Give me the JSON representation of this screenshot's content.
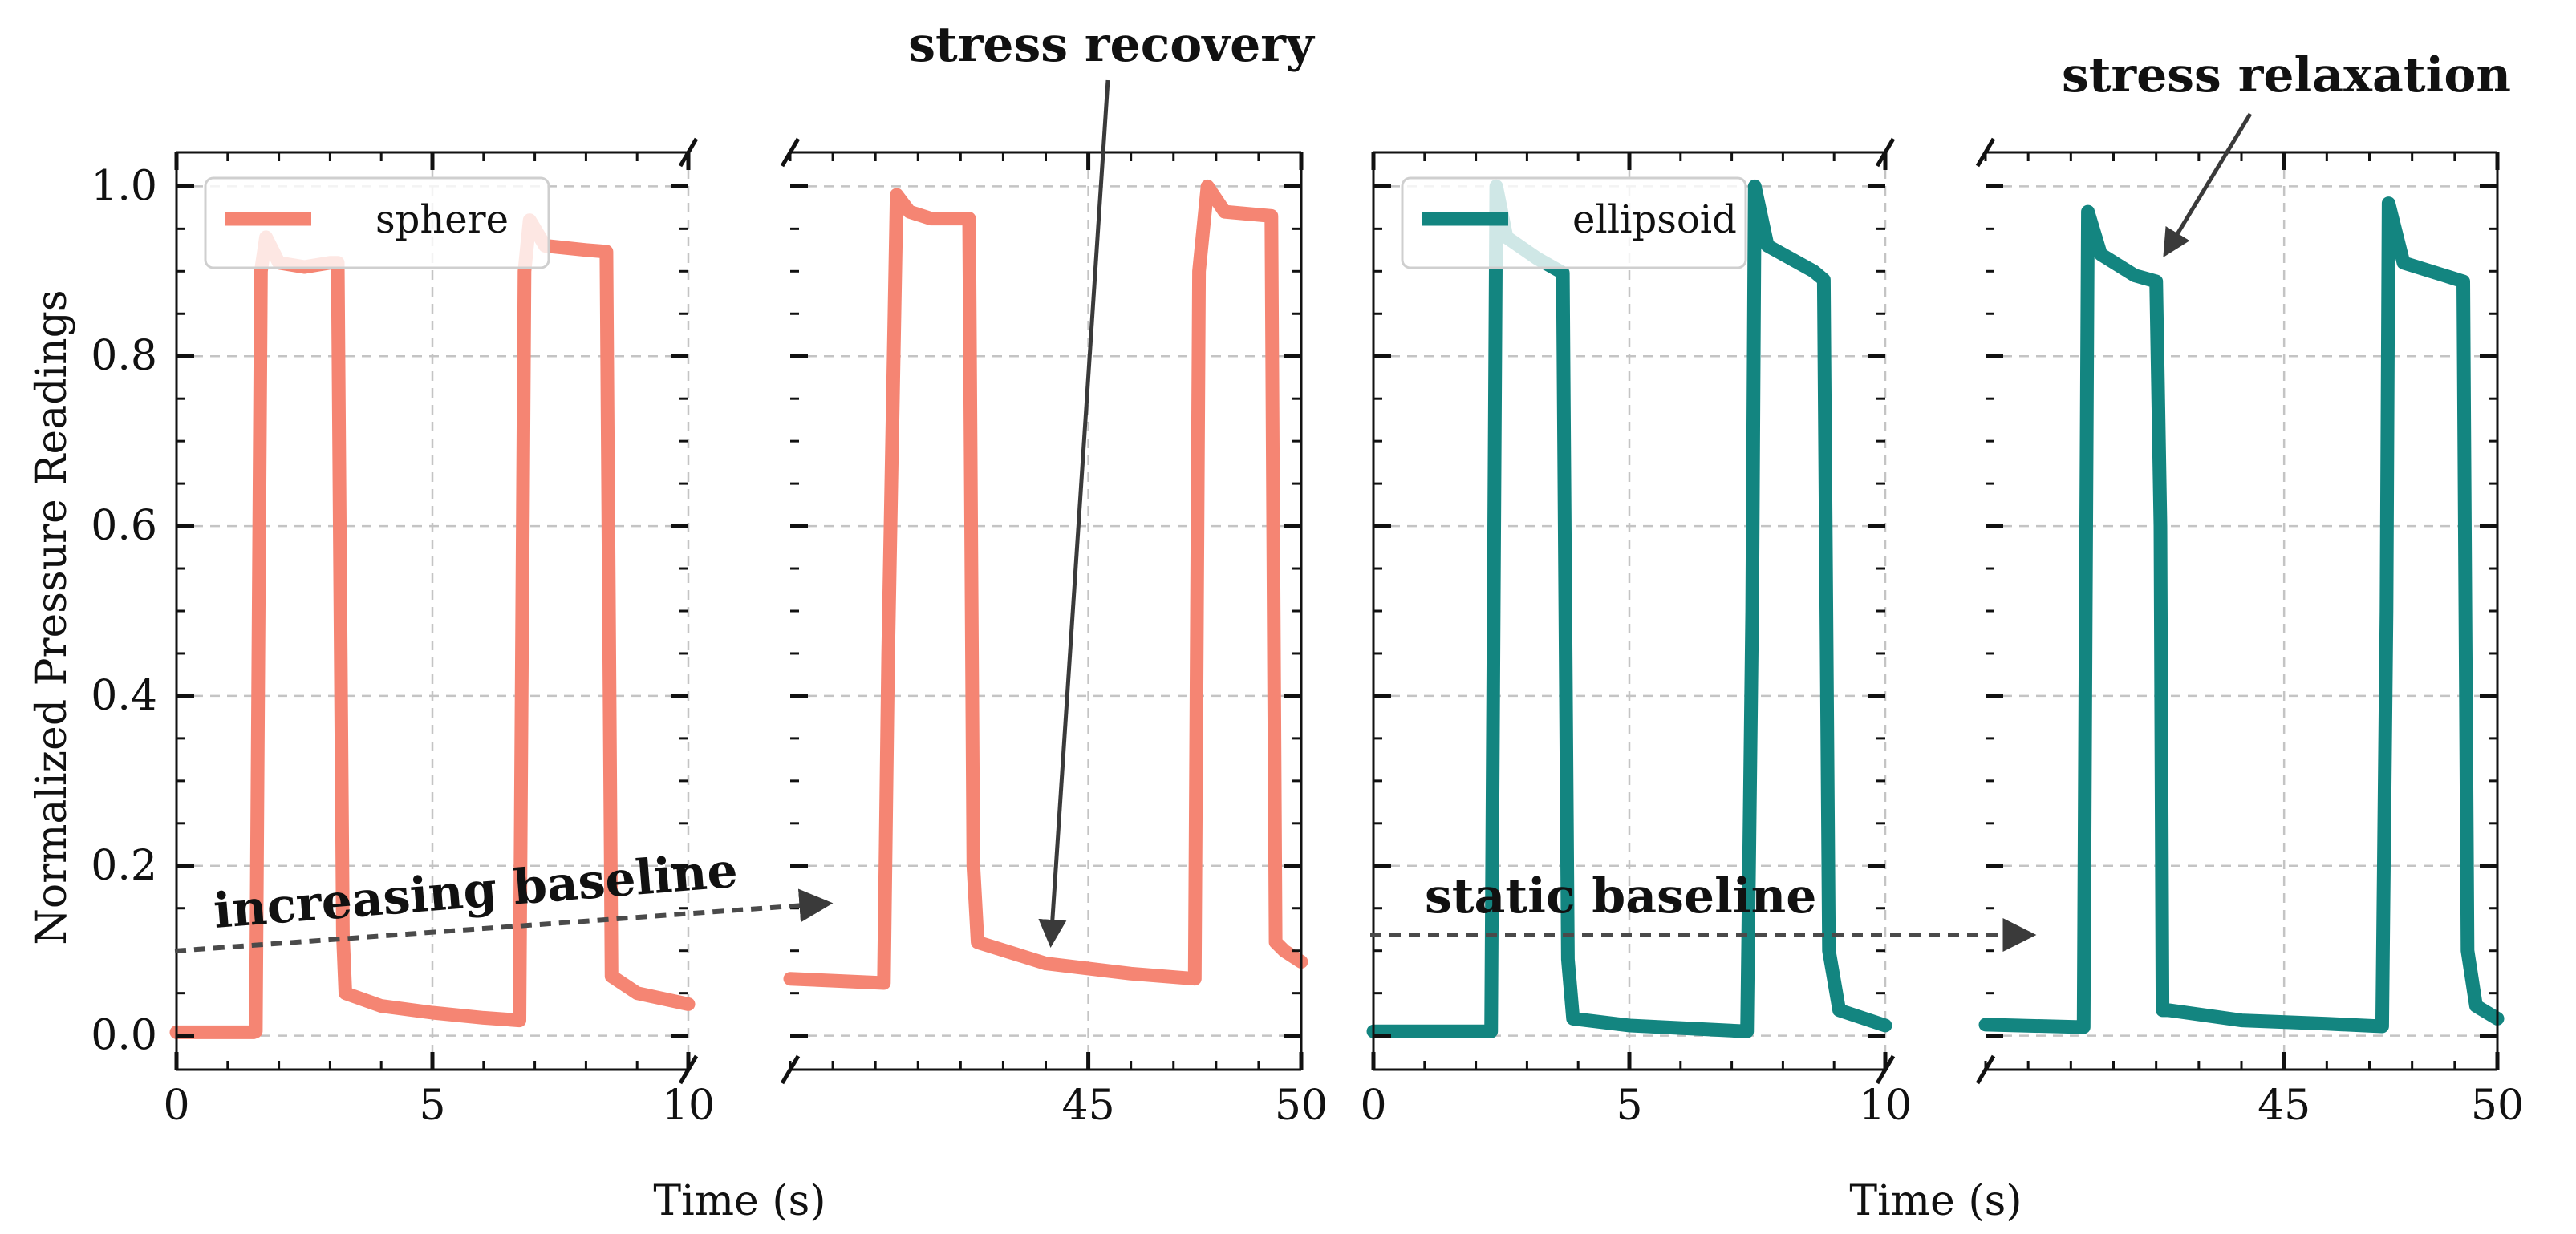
{
  "chart_data": {
    "type": "line",
    "ylabel": "Normalized Pressure Readings",
    "ylim": [
      -0.04,
      1.04
    ],
    "yticks": [
      0.0,
      0.2,
      0.4,
      0.6,
      0.8,
      1.0
    ],
    "ytick_labels": [
      "0.0",
      "0.2",
      "0.4",
      "0.6",
      "0.8",
      "1.0"
    ],
    "grid": true,
    "panels": [
      {
        "id": "sphere-left",
        "xlim": [
          0,
          10
        ],
        "xticks": [
          0,
          5,
          10
        ],
        "xtick_labels": [
          "0",
          "5",
          "10"
        ],
        "color": "#f58573",
        "legend": "sphere",
        "points": [
          [
            0,
            0.004
          ],
          [
            1.5,
            0.004
          ],
          [
            1.55,
            0.005
          ],
          [
            1.65,
            0.9
          ],
          [
            1.75,
            0.94
          ],
          [
            2.0,
            0.91
          ],
          [
            2.5,
            0.905
          ],
          [
            3.0,
            0.91
          ],
          [
            3.15,
            0.91
          ],
          [
            3.25,
            0.12
          ],
          [
            3.3,
            0.05
          ],
          [
            4.0,
            0.035
          ],
          [
            5.0,
            0.027
          ],
          [
            6.0,
            0.021
          ],
          [
            6.7,
            0.018
          ],
          [
            6.8,
            0.9
          ],
          [
            6.9,
            0.96
          ],
          [
            7.2,
            0.93
          ],
          [
            8.0,
            0.925
          ],
          [
            8.4,
            0.923
          ],
          [
            8.5,
            0.07
          ],
          [
            9.0,
            0.05
          ],
          [
            10,
            0.037
          ]
        ]
      },
      {
        "id": "sphere-right",
        "xlim": [
          38,
          50
        ],
        "xticks": [
          45,
          50
        ],
        "xtick_labels": [
          "45",
          "50"
        ],
        "color": "#f58573",
        "legend": "",
        "points": [
          [
            38,
            0.067
          ],
          [
            40.2,
            0.062
          ],
          [
            40.3,
            0.45
          ],
          [
            40.5,
            0.99
          ],
          [
            40.8,
            0.97
          ],
          [
            41.3,
            0.962
          ],
          [
            42.2,
            0.962
          ],
          [
            42.3,
            0.2
          ],
          [
            42.4,
            0.11
          ],
          [
            44,
            0.085
          ],
          [
            46,
            0.073
          ],
          [
            47.5,
            0.067
          ],
          [
            47.6,
            0.9
          ],
          [
            47.8,
            1.0
          ],
          [
            48.2,
            0.97
          ],
          [
            49.3,
            0.965
          ],
          [
            49.4,
            0.11
          ],
          [
            49.6,
            0.1
          ],
          [
            50,
            0.087
          ]
        ]
      },
      {
        "id": "ellipsoid-left",
        "xlim": [
          0,
          10
        ],
        "xticks": [
          0,
          5,
          10
        ],
        "xtick_labels": [
          "0",
          "5",
          "10"
        ],
        "color": "#138580",
        "legend": "ellipsoid",
        "points": [
          [
            0,
            0.005
          ],
          [
            2.3,
            0.005
          ],
          [
            2.35,
            0.5
          ],
          [
            2.4,
            1.0
          ],
          [
            2.6,
            0.94
          ],
          [
            3.2,
            0.915
          ],
          [
            3.7,
            0.898
          ],
          [
            3.8,
            0.09
          ],
          [
            3.9,
            0.02
          ],
          [
            5.0,
            0.012
          ],
          [
            7.3,
            0.005
          ],
          [
            7.4,
            0.5
          ],
          [
            7.45,
            1.0
          ],
          [
            7.7,
            0.93
          ],
          [
            8.6,
            0.9
          ],
          [
            8.8,
            0.89
          ],
          [
            8.9,
            0.1
          ],
          [
            9.1,
            0.03
          ],
          [
            10,
            0.012
          ]
        ]
      },
      {
        "id": "ellipsoid-right",
        "xlim": [
          38,
          50
        ],
        "xticks": [
          45,
          50
        ],
        "xtick_labels": [
          "45",
          "50"
        ],
        "color": "#138580",
        "legend": "",
        "points": [
          [
            38,
            0.013
          ],
          [
            40.3,
            0.01
          ],
          [
            40.35,
            0.5
          ],
          [
            40.4,
            0.97
          ],
          [
            40.7,
            0.92
          ],
          [
            41.5,
            0.895
          ],
          [
            42.0,
            0.888
          ],
          [
            42.1,
            0.6
          ],
          [
            42.15,
            0.03
          ],
          [
            42.3,
            0.03
          ],
          [
            44,
            0.018
          ],
          [
            46,
            0.014
          ],
          [
            47.3,
            0.011
          ],
          [
            47.4,
            0.5
          ],
          [
            47.45,
            0.98
          ],
          [
            47.8,
            0.91
          ],
          [
            49.2,
            0.888
          ],
          [
            49.3,
            0.1
          ],
          [
            49.5,
            0.035
          ],
          [
            50,
            0.02
          ]
        ]
      }
    ],
    "xlabels": [
      "Time (s)",
      "Time (s)"
    ],
    "annotations": [
      "stress recovery",
      "stress relaxation",
      "increasing baseline",
      "static baseline"
    ]
  }
}
